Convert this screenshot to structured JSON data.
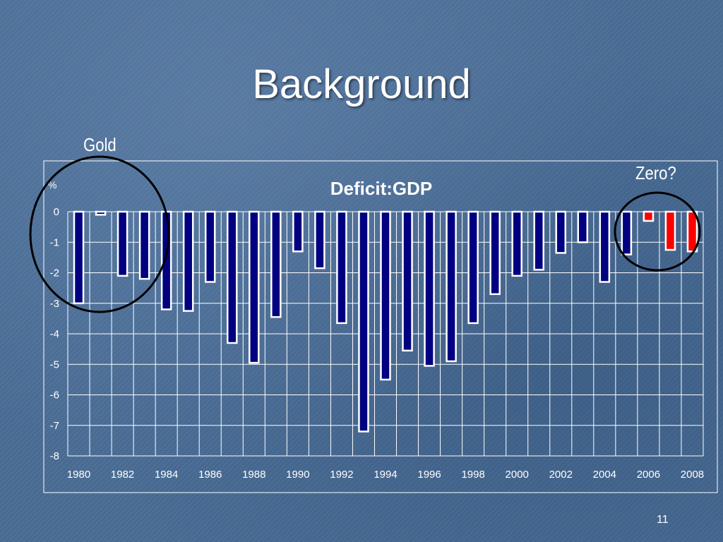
{
  "slide": {
    "title": "Background",
    "annotation_left": "Gold",
    "annotation_right": "Zero?",
    "page_number": "11"
  },
  "colors": {
    "actual_bar": "#000080",
    "projected_bar": "#ff0000",
    "bar_outline": "#ffffff",
    "grid": "#ffffff",
    "circle": "#000000"
  },
  "chart_data": {
    "type": "bar",
    "title": "Deficit:GDP",
    "ylabel": "%",
    "xlabel": "",
    "ylim": [
      -8,
      0
    ],
    "yticks": [
      0,
      -1,
      -2,
      -3,
      -4,
      -5,
      -6,
      -7,
      -8
    ],
    "xtick_labels": [
      "1980",
      "1982",
      "1984",
      "1986",
      "1988",
      "1990",
      "1992",
      "1994",
      "1996",
      "1998",
      "2000",
      "2002",
      "2004",
      "2006",
      "2008"
    ],
    "categories": [
      "1980",
      "1981",
      "1982",
      "1983",
      "1984",
      "1985",
      "1986",
      "1987",
      "1988",
      "1989",
      "1990",
      "1991",
      "1992",
      "1993",
      "1994",
      "1995",
      "1996",
      "1997",
      "1998",
      "1999",
      "2000",
      "2001",
      "2002",
      "2003",
      "2004",
      "2005",
      "2006",
      "2007",
      "2008"
    ],
    "series": [
      {
        "values": [
          -3.0,
          -0.1,
          -2.1,
          -2.2,
          -3.2,
          -3.25,
          -2.3,
          -4.3,
          -4.95,
          -3.45,
          -1.3,
          -1.85,
          -3.65,
          -7.2,
          -5.5,
          -4.55,
          -5.05,
          -4.9,
          -3.65,
          -2.7,
          -2.1,
          -1.9,
          -1.35,
          -1.0,
          -2.3,
          -1.4,
          -0.3,
          -1.25,
          -1.3
        ],
        "colors": [
          "actual",
          "actual",
          "actual",
          "actual",
          "actual",
          "actual",
          "actual",
          "actual",
          "actual",
          "actual",
          "actual",
          "actual",
          "actual",
          "actual",
          "actual",
          "actual",
          "actual",
          "actual",
          "actual",
          "actual",
          "actual",
          "actual",
          "actual",
          "actual",
          "actual",
          "actual",
          "projected",
          "projected",
          "projected"
        ]
      }
    ],
    "grid": true,
    "legend": "none"
  }
}
